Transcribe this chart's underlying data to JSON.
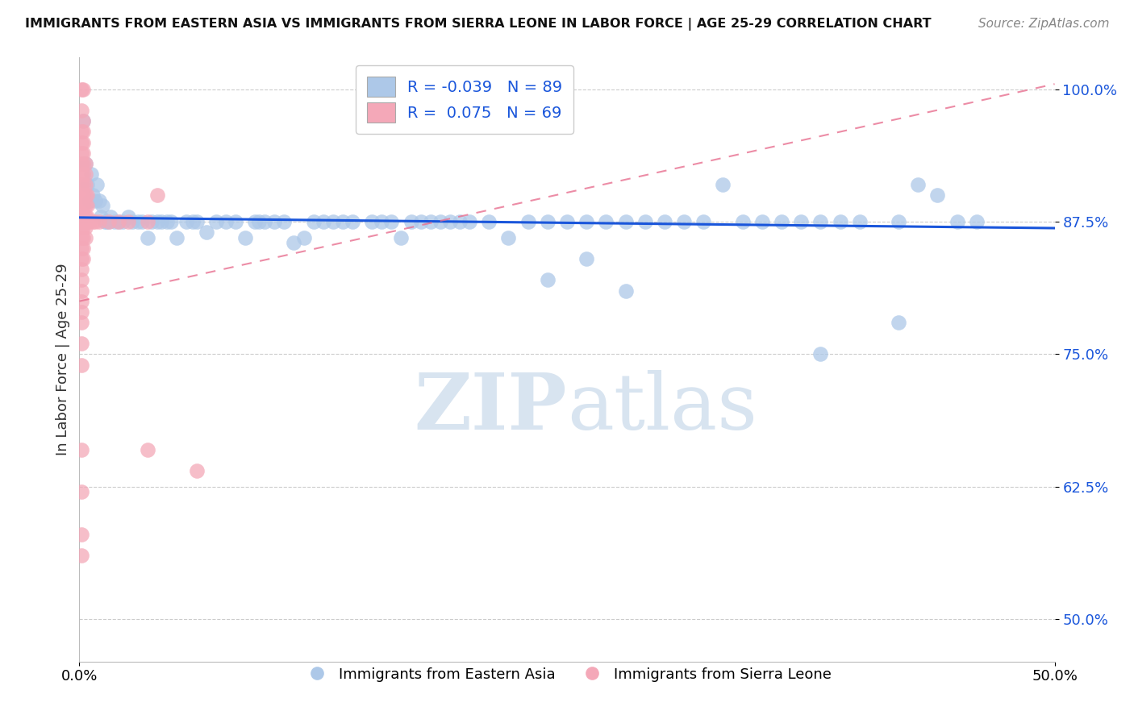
{
  "title": "IMMIGRANTS FROM EASTERN ASIA VS IMMIGRANTS FROM SIERRA LEONE IN LABOR FORCE | AGE 25-29 CORRELATION CHART",
  "source": "Source: ZipAtlas.com",
  "ylabel": "In Labor Force | Age 25-29",
  "y_ticks": [
    0.5,
    0.625,
    0.75,
    0.875,
    1.0
  ],
  "y_tick_labels": [
    "50.0%",
    "62.5%",
    "75.0%",
    "87.5%",
    "100.0%"
  ],
  "x_range": [
    0.0,
    0.5
  ],
  "y_range": [
    0.46,
    1.03
  ],
  "legend_blue_R": "-0.039",
  "legend_blue_N": "89",
  "legend_pink_R": "0.075",
  "legend_pink_N": "69",
  "blue_color": "#adc8e8",
  "pink_color": "#f4a8b8",
  "blue_line_color": "#1a56db",
  "pink_line_color": "#e87090",
  "watermark_color": "#d8e4f0",
  "blue_line_y0": 0.879,
  "blue_line_y1": 0.869,
  "pink_line_y0": 0.8,
  "pink_line_y1": 1.005,
  "blue_dots": [
    [
      0.002,
      0.97
    ],
    [
      0.003,
      0.93
    ],
    [
      0.004,
      0.91
    ],
    [
      0.005,
      0.895
    ],
    [
      0.006,
      0.92
    ],
    [
      0.007,
      0.9
    ],
    [
      0.008,
      0.895
    ],
    [
      0.009,
      0.91
    ],
    [
      0.01,
      0.895
    ],
    [
      0.011,
      0.88
    ],
    [
      0.012,
      0.89
    ],
    [
      0.013,
      0.875
    ],
    [
      0.014,
      0.875
    ],
    [
      0.015,
      0.875
    ],
    [
      0.016,
      0.88
    ],
    [
      0.018,
      0.875
    ],
    [
      0.02,
      0.875
    ],
    [
      0.022,
      0.875
    ],
    [
      0.025,
      0.88
    ],
    [
      0.027,
      0.875
    ],
    [
      0.03,
      0.875
    ],
    [
      0.032,
      0.875
    ],
    [
      0.035,
      0.86
    ],
    [
      0.037,
      0.875
    ],
    [
      0.04,
      0.875
    ],
    [
      0.042,
      0.875
    ],
    [
      0.045,
      0.875
    ],
    [
      0.047,
      0.875
    ],
    [
      0.05,
      0.86
    ],
    [
      0.055,
      0.875
    ],
    [
      0.058,
      0.875
    ],
    [
      0.06,
      0.875
    ],
    [
      0.065,
      0.865
    ],
    [
      0.07,
      0.875
    ],
    [
      0.075,
      0.875
    ],
    [
      0.08,
      0.875
    ],
    [
      0.085,
      0.86
    ],
    [
      0.09,
      0.875
    ],
    [
      0.092,
      0.875
    ],
    [
      0.095,
      0.875
    ],
    [
      0.1,
      0.875
    ],
    [
      0.105,
      0.875
    ],
    [
      0.11,
      0.855
    ],
    [
      0.115,
      0.86
    ],
    [
      0.12,
      0.875
    ],
    [
      0.125,
      0.875
    ],
    [
      0.13,
      0.875
    ],
    [
      0.135,
      0.875
    ],
    [
      0.14,
      0.875
    ],
    [
      0.15,
      0.875
    ],
    [
      0.155,
      0.875
    ],
    [
      0.16,
      0.875
    ],
    [
      0.165,
      0.86
    ],
    [
      0.17,
      0.875
    ],
    [
      0.175,
      0.875
    ],
    [
      0.18,
      0.875
    ],
    [
      0.185,
      0.875
    ],
    [
      0.19,
      0.875
    ],
    [
      0.195,
      0.875
    ],
    [
      0.2,
      0.875
    ],
    [
      0.21,
      0.875
    ],
    [
      0.22,
      0.86
    ],
    [
      0.23,
      0.875
    ],
    [
      0.24,
      0.875
    ],
    [
      0.25,
      0.875
    ],
    [
      0.26,
      0.875
    ],
    [
      0.27,
      0.875
    ],
    [
      0.28,
      0.875
    ],
    [
      0.29,
      0.875
    ],
    [
      0.3,
      0.875
    ],
    [
      0.31,
      0.875
    ],
    [
      0.32,
      0.875
    ],
    [
      0.33,
      0.91
    ],
    [
      0.34,
      0.875
    ],
    [
      0.35,
      0.875
    ],
    [
      0.36,
      0.875
    ],
    [
      0.37,
      0.875
    ],
    [
      0.38,
      0.875
    ],
    [
      0.39,
      0.875
    ],
    [
      0.4,
      0.875
    ],
    [
      0.42,
      0.875
    ],
    [
      0.43,
      0.91
    ],
    [
      0.44,
      0.9
    ],
    [
      0.45,
      0.875
    ],
    [
      0.46,
      0.875
    ],
    [
      0.42,
      0.78
    ],
    [
      0.38,
      0.75
    ],
    [
      0.28,
      0.81
    ],
    [
      0.26,
      0.84
    ],
    [
      0.24,
      0.82
    ]
  ],
  "pink_dots": [
    [
      0.001,
      1.0
    ],
    [
      0.002,
      1.0
    ],
    [
      0.001,
      0.98
    ],
    [
      0.002,
      0.97
    ],
    [
      0.001,
      0.96
    ],
    [
      0.002,
      0.96
    ],
    [
      0.001,
      0.95
    ],
    [
      0.002,
      0.95
    ],
    [
      0.001,
      0.94
    ],
    [
      0.002,
      0.94
    ],
    [
      0.001,
      0.93
    ],
    [
      0.002,
      0.93
    ],
    [
      0.003,
      0.93
    ],
    [
      0.001,
      0.92
    ],
    [
      0.002,
      0.92
    ],
    [
      0.003,
      0.92
    ],
    [
      0.001,
      0.91
    ],
    [
      0.002,
      0.91
    ],
    [
      0.003,
      0.91
    ],
    [
      0.001,
      0.9
    ],
    [
      0.002,
      0.9
    ],
    [
      0.003,
      0.9
    ],
    [
      0.004,
      0.9
    ],
    [
      0.001,
      0.89
    ],
    [
      0.002,
      0.89
    ],
    [
      0.003,
      0.89
    ],
    [
      0.004,
      0.89
    ],
    [
      0.001,
      0.88
    ],
    [
      0.002,
      0.88
    ],
    [
      0.003,
      0.88
    ],
    [
      0.004,
      0.88
    ],
    [
      0.001,
      0.875
    ],
    [
      0.002,
      0.875
    ],
    [
      0.003,
      0.875
    ],
    [
      0.004,
      0.875
    ],
    [
      0.005,
      0.875
    ],
    [
      0.001,
      0.87
    ],
    [
      0.002,
      0.87
    ],
    [
      0.003,
      0.87
    ],
    [
      0.001,
      0.86
    ],
    [
      0.002,
      0.86
    ],
    [
      0.003,
      0.86
    ],
    [
      0.001,
      0.85
    ],
    [
      0.002,
      0.85
    ],
    [
      0.001,
      0.84
    ],
    [
      0.002,
      0.84
    ],
    [
      0.001,
      0.83
    ],
    [
      0.001,
      0.82
    ],
    [
      0.001,
      0.81
    ],
    [
      0.001,
      0.8
    ],
    [
      0.001,
      0.79
    ],
    [
      0.001,
      0.78
    ],
    [
      0.001,
      0.76
    ],
    [
      0.001,
      0.74
    ],
    [
      0.04,
      0.9
    ],
    [
      0.035,
      0.875
    ],
    [
      0.001,
      0.66
    ],
    [
      0.001,
      0.62
    ],
    [
      0.06,
      0.64
    ],
    [
      0.035,
      0.66
    ],
    [
      0.001,
      0.58
    ],
    [
      0.001,
      0.56
    ],
    [
      0.02,
      0.875
    ],
    [
      0.025,
      0.875
    ],
    [
      0.007,
      0.875
    ],
    [
      0.008,
      0.875
    ],
    [
      0.01,
      0.875
    ],
    [
      0.015,
      0.875
    ]
  ]
}
